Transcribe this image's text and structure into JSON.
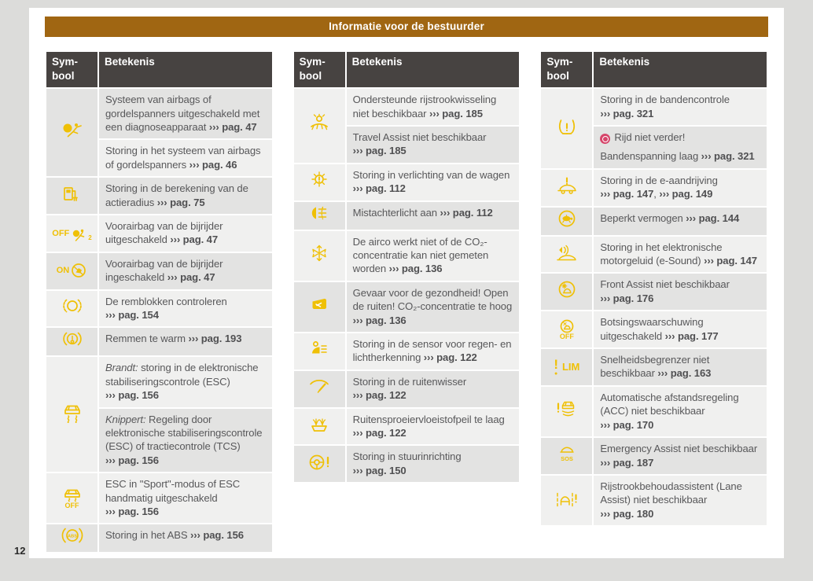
{
  "banner": {
    "title": "Informatie voor de bestuurder"
  },
  "page": {
    "number": "12"
  },
  "colors": {
    "outer-bg": "#DCDCDA",
    "banner-bg": "#A06612",
    "th-bg": "#474341",
    "shade-light": "#F0F0EF",
    "shade-dark": "#E3E3E2",
    "text-col": "#58585A",
    "icon-yellow": "#EFC006",
    "badge-red": "#D6456A"
  },
  "table_header": {
    "symbol": "Sym-bool",
    "meaning": "Betekenis"
  },
  "tables": [
    {
      "rows": [
        {
          "icon": "airbag-seatbelt-icon",
          "span": 2,
          "shade": "dark",
          "segs": [
            {
              "t": "Systeem van airbags of gordelspanners uitgeschakeld met een diagnoseapparaat ",
              "f": "n"
            },
            {
              "t": "››› pag. 47",
              "f": "ref"
            }
          ]
        },
        {
          "covered": true,
          "shade": "light",
          "segs": [
            {
              "t": "Storing in het systeem van airbags of gordelspanners ",
              "f": "n"
            },
            {
              "t": "››› pag. 46",
              "f": "ref"
            }
          ]
        },
        {
          "icon": "range-calculation-icon",
          "shade": "dark",
          "segs": [
            {
              "t": "Storing in de berekening van de actieradius ",
              "f": "n"
            },
            {
              "t": "››› pag. 75",
              "f": "ref"
            }
          ]
        },
        {
          "icon": "passenger-airbag-off-icon",
          "shade": "light",
          "segs": [
            {
              "t": "Voorairbag van de bijrijder uitgeschakeld ",
              "f": "n"
            },
            {
              "t": "››› pag. 47",
              "f": "ref"
            }
          ]
        },
        {
          "icon": "passenger-airbag-on-icon",
          "shade": "dark",
          "segs": [
            {
              "t": "Voorairbag van de bijrijder ingeschakeld ",
              "f": "n"
            },
            {
              "t": "››› pag. 47",
              "f": "ref"
            }
          ]
        },
        {
          "icon": "brake-pads-icon",
          "shade": "light",
          "segs": [
            {
              "t": "De remblokken controleren ",
              "f": "n"
            },
            {
              "t": "››› pag. 154",
              "f": "ref"
            }
          ]
        },
        {
          "icon": "brakes-hot-icon",
          "shade": "dark",
          "segs": [
            {
              "t": "Remmen te warm ",
              "f": "n"
            },
            {
              "t": "››› pag. 193",
              "f": "ref"
            }
          ]
        },
        {
          "icon": "esc-icon",
          "span": 2,
          "shade": "light",
          "segs": [
            {
              "t": "Brandt:",
              "f": "i"
            },
            {
              "t": " storing in de elektronische stabiliseringscontrole (ESC) ",
              "f": "n"
            },
            {
              "t": "››› pag. 156",
              "f": "ref"
            }
          ]
        },
        {
          "covered": true,
          "shade": "dark",
          "segs": [
            {
              "t": "Knippert:",
              "f": "i"
            },
            {
              "t": " Regeling door elektronische stabiliseringscontrole (ESC) of tractiecontrole (TCS) ",
              "f": "n"
            },
            {
              "t": "››› pag. 156",
              "f": "ref"
            }
          ]
        },
        {
          "icon": "esc-off-icon",
          "shade": "light",
          "segs": [
            {
              "t": "ESC in \"Sport\"-modus of ESC handmatig uitgeschakeld ",
              "f": "n"
            },
            {
              "t": "››› pag. 156",
              "f": "ref"
            }
          ]
        },
        {
          "icon": "abs-icon",
          "shade": "dark",
          "segs": [
            {
              "t": "Storing in het ABS ",
              "f": "n"
            },
            {
              "t": "››› pag. 156",
              "f": "ref"
            }
          ]
        }
      ]
    },
    {
      "rows": [
        {
          "icon": "lane-change-assist-icon",
          "span": 2,
          "shade": "light",
          "segs": [
            {
              "t": "Ondersteunde rijstrookwisseling niet beschikbaar ",
              "f": "n"
            },
            {
              "t": "››› pag. 185",
              "f": "ref"
            }
          ]
        },
        {
          "covered": true,
          "shade": "dark",
          "segs": [
            {
              "t": "Travel Assist niet beschikbaar ",
              "f": "n"
            },
            {
              "t": "››› pag. 185",
              "f": "ref"
            }
          ]
        },
        {
          "icon": "light-fault-icon",
          "shade": "light",
          "segs": [
            {
              "t": "Storing in verlichting van de wagen ",
              "f": "n"
            },
            {
              "t": "››› pag. 112",
              "f": "ref"
            }
          ]
        },
        {
          "icon": "rear-fog-icon",
          "shade": "dark",
          "segs": [
            {
              "t": "Mistachterlicht aan ",
              "f": "n"
            },
            {
              "t": "››› pag. 112",
              "f": "ref"
            }
          ]
        },
        {
          "icon": "ac-icon",
          "shade": "light",
          "segs": [
            {
              "t": "De airco werkt niet of de CO₂-concentratie kan niet gemeten worden ",
              "f": "n"
            },
            {
              "t": "››› pag. 136",
              "f": "ref"
            }
          ]
        },
        {
          "icon": "co2-window-icon",
          "shade": "dark",
          "segs": [
            {
              "t": "Gevaar voor de gezondheid! Open de ruiten! CO₂-concentratie te hoog ",
              "f": "n"
            },
            {
              "t": "››› pag. 136",
              "f": "ref"
            }
          ]
        },
        {
          "icon": "rain-light-sensor-icon",
          "shade": "light",
          "segs": [
            {
              "t": "Storing in de sensor voor regen- en lichtherkenning ",
              "f": "n"
            },
            {
              "t": "››› pag. 122",
              "f": "ref"
            }
          ]
        },
        {
          "icon": "wiper-icon",
          "shade": "dark",
          "segs": [
            {
              "t": "Storing in de ruitenwisser ",
              "f": "n"
            },
            {
              "t": "››› pag. 122",
              "f": "ref"
            }
          ]
        },
        {
          "icon": "washer-fluid-icon",
          "shade": "light",
          "segs": [
            {
              "t": "Ruitensproeiervloeistofpeil te laag ",
              "f": "n"
            },
            {
              "t": "››› pag. 122",
              "f": "ref"
            }
          ]
        },
        {
          "icon": "steering-fault-icon",
          "shade": "dark",
          "segs": [
            {
              "t": "Storing in stuurinrichting ",
              "f": "n"
            },
            {
              "t": "››› pag. 150",
              "f": "ref"
            }
          ]
        }
      ]
    },
    {
      "rows": [
        {
          "icon": "tyre-pressure-icon",
          "span": 2,
          "shade": "light",
          "segs": [
            {
              "t": "Storing in de bandencontrole ",
              "f": "n"
            },
            {
              "t": "››› pag. 321",
              "f": "ref"
            }
          ]
        },
        {
          "covered": true,
          "shade": "dark",
          "segs": [
            {
              "badge": true
            },
            {
              "t": "Rijd niet verder!",
              "f": "n"
            },
            {
              "br": true
            },
            {
              "t": "Bandenspanning laag ",
              "f": "n"
            },
            {
              "t": "››› pag. 321",
              "f": "ref"
            }
          ]
        },
        {
          "icon": "e-drive-fault-icon",
          "shade": "light",
          "segs": [
            {
              "t": "Storing in de e-aandrijving ",
              "f": "n"
            },
            {
              "t": "››› pag. 147",
              "f": "ref"
            },
            {
              "t": ", ",
              "f": "n"
            },
            {
              "t": "››› pag. 149",
              "f": "ref"
            }
          ]
        },
        {
          "icon": "reduced-power-icon",
          "shade": "dark",
          "segs": [
            {
              "t": "Beperkt vermogen ",
              "f": "n"
            },
            {
              "t": "››› pag. 144",
              "f": "ref"
            }
          ]
        },
        {
          "icon": "e-sound-icon",
          "shade": "light",
          "segs": [
            {
              "t": "Storing in het elektronische motorgeluid (e-Sound) ",
              "f": "n"
            },
            {
              "t": "››› pag. 147",
              "f": "ref"
            }
          ]
        },
        {
          "icon": "front-assist-icon",
          "shade": "dark",
          "segs": [
            {
              "t": "Front Assist niet beschikbaar ",
              "f": "n"
            },
            {
              "t": "››› pag. 176",
              "f": "ref"
            }
          ]
        },
        {
          "icon": "collision-warning-off-icon",
          "shade": "light",
          "segs": [
            {
              "t": "Botsingswaarschuwing uitgeschakeld ",
              "f": "n"
            },
            {
              "t": "››› pag. 177",
              "f": "ref"
            }
          ]
        },
        {
          "icon": "speed-limiter-icon",
          "shade": "dark",
          "segs": [
            {
              "t": "Snelheidsbegrenzer niet beschikbaar ",
              "f": "n"
            },
            {
              "t": "››› pag. 163",
              "f": "ref"
            }
          ]
        },
        {
          "icon": "acc-icon",
          "shade": "light",
          "segs": [
            {
              "t": "Automatische afstandsregeling (ACC) niet beschikbaar ",
              "f": "n"
            },
            {
              "t": "››› pag. 170",
              "f": "ref"
            }
          ]
        },
        {
          "icon": "emergency-assist-icon",
          "shade": "dark",
          "segs": [
            {
              "t": "Emergency Assist niet beschikbaar ",
              "f": "n"
            },
            {
              "t": "››› pag. 187",
              "f": "ref"
            }
          ]
        },
        {
          "icon": "lane-assist-icon",
          "shade": "light",
          "segs": [
            {
              "t": "Rijstrookbehoudassistent (Lane Assist) niet beschikbaar ",
              "f": "n"
            },
            {
              "t": "››› pag. 180",
              "f": "ref"
            }
          ]
        }
      ]
    }
  ]
}
